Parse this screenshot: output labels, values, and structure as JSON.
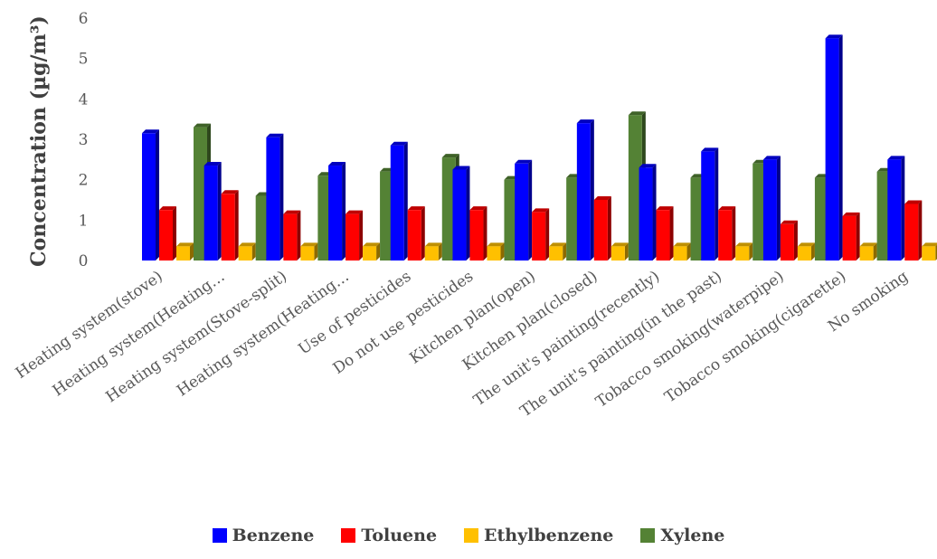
{
  "chart_data": {
    "type": "bar",
    "ylabel": "Concentration (µg/m³)",
    "ylim": [
      0,
      6
    ],
    "yticks": [
      0,
      1,
      2,
      3,
      4,
      5,
      6
    ],
    "categories": [
      "Heating system(stove)",
      "Heating system(Heating…",
      "Heating system(Stove-split)",
      "Heating system(Heating…",
      "Use of pesticides",
      "Do not use pesticides",
      "Kitchen plan(open)",
      "Kitchen plan(closed)",
      "The unit's painting(recently)",
      "The unit's painting(in the past)",
      "Tobacco smoking(waterpipe)",
      "Tobacco smoking(cigarette)",
      "No smoking"
    ],
    "series": [
      {
        "name": "Benzene",
        "color": "#0000FF",
        "values": [
          3.15,
          2.35,
          3.05,
          2.35,
          2.85,
          2.25,
          2.4,
          3.4,
          2.3,
          2.7,
          2.5,
          5.5,
          2.5
        ]
      },
      {
        "name": "Toluene",
        "color": "#FF0000",
        "values": [
          1.25,
          1.65,
          1.15,
          1.15,
          1.25,
          1.25,
          1.2,
          1.5,
          1.25,
          1.25,
          0.9,
          1.1,
          1.4
        ]
      },
      {
        "name": "Ethylbenzene",
        "color": "#FFC000",
        "values": [
          0.35,
          0.35,
          0.35,
          0.35,
          0.35,
          0.35,
          0.35,
          0.35,
          0.35,
          0.35,
          0.35,
          0.35,
          0.35
        ]
      },
      {
        "name": "Xylene",
        "color": "#548235",
        "values": [
          3.3,
          1.6,
          2.1,
          2.2,
          2.55,
          2.0,
          2.05,
          3.6,
          2.05,
          2.4,
          2.05,
          2.2,
          2.35
        ]
      }
    ],
    "legend_position": "bottom",
    "grid": false
  }
}
